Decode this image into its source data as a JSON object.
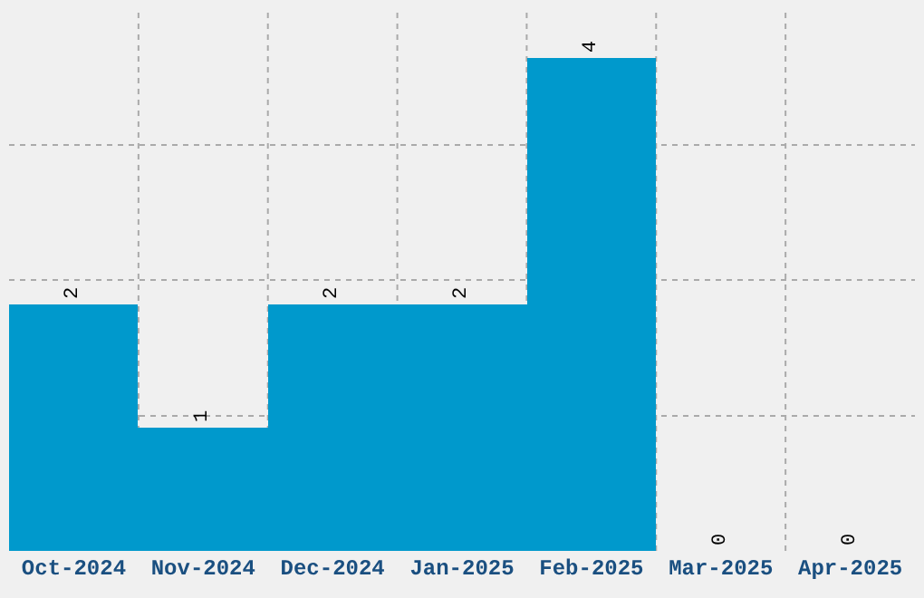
{
  "chart_data": {
    "type": "bar",
    "categories": [
      "Oct-2024",
      "Nov-2024",
      "Dec-2024",
      "Jan-2025",
      "Feb-2025",
      "Mar-2025",
      "Apr-2025"
    ],
    "values": [
      2,
      1,
      2,
      2,
      4,
      0,
      0
    ],
    "color": "#0099cc",
    "data_labels": true,
    "relative": false,
    "ylim": [
      0,
      4.4
    ],
    "yticks": [
      {
        "value": 1.1,
        "label": null
      },
      {
        "value": 2.2,
        "label": null
      },
      {
        "value": 3.3,
        "label": null
      }
    ],
    "grid": true,
    "tick_labels": "x"
  }
}
